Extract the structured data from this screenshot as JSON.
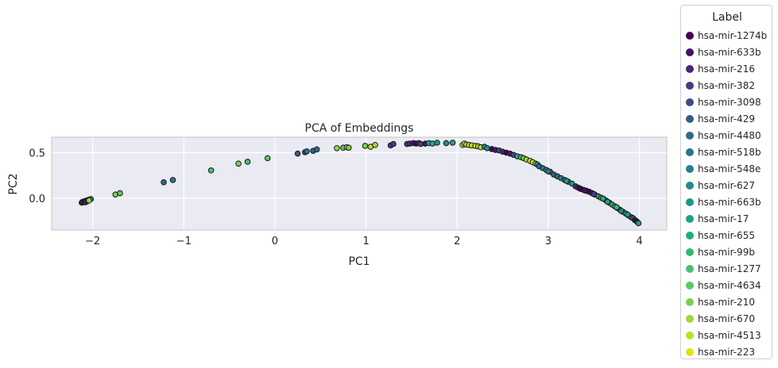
{
  "chart_data": {
    "type": "scatter",
    "title": "PCA of Embeddings",
    "xlabel": "PC1",
    "ylabel": "PC2",
    "xlim": [
      -2.45,
      4.3
    ],
    "ylim": [
      -0.35,
      0.67
    ],
    "xticks": [
      -2,
      -1,
      0,
      1,
      2,
      3,
      4
    ],
    "xtick_labels": [
      "−2",
      "−1",
      "0",
      "1",
      "2",
      "3",
      "4"
    ],
    "yticks": [
      0.0,
      0.5
    ],
    "ytick_labels": [
      "0.0",
      "0.5"
    ],
    "grid": true,
    "legend": {
      "title": "Label",
      "placement": "outside-right",
      "entries": [
        {
          "label": "hsa-mir-1274b",
          "color": "#440154"
        },
        {
          "label": "hsa-mir-633b",
          "color": "#471365"
        },
        {
          "label": "hsa-mir-216",
          "color": "#472877"
        },
        {
          "label": "hsa-mir-382",
          "color": "#433d84"
        },
        {
          "label": "hsa-mir-3098",
          "color": "#3e4b8a"
        },
        {
          "label": "hsa-mir-429",
          "color": "#375a8c"
        },
        {
          "label": "hsa-mir-4480",
          "color": "#30688e"
        },
        {
          "label": "hsa-mir-518b",
          "color": "#2c738e"
        },
        {
          "label": "hsa-mir-548e",
          "color": "#277f8e"
        },
        {
          "label": "hsa-mir-627",
          "color": "#228b8d"
        },
        {
          "label": "hsa-mir-663b",
          "color": "#1f968b"
        },
        {
          "label": "hsa-mir-17",
          "color": "#1fa188"
        },
        {
          "label": "hsa-mir-655",
          "color": "#24aa83"
        },
        {
          "label": "hsa-mir-99b",
          "color": "#35b779"
        },
        {
          "label": "hsa-mir-1277",
          "color": "#4ac16d"
        },
        {
          "label": "hsa-mir-4634",
          "color": "#5cc863"
        },
        {
          "label": "hsa-mir-210",
          "color": "#7ad151"
        },
        {
          "label": "hsa-mir-670",
          "color": "#9bd93c"
        },
        {
          "label": "hsa-mir-4513",
          "color": "#bddf26"
        },
        {
          "label": "hsa-mir-223",
          "color": "#dde318"
        }
      ]
    },
    "points": [
      [
        -2.12,
        -0.05,
        3
      ],
      [
        -2.11,
        -0.04,
        5
      ],
      [
        -2.1,
        -0.04,
        9
      ],
      [
        -2.09,
        -0.035,
        6
      ],
      [
        -2.08,
        -0.03,
        12
      ],
      [
        -2.07,
        -0.03,
        16
      ],
      [
        -2.06,
        -0.025,
        2
      ],
      [
        -2.05,
        -0.02,
        18
      ],
      [
        -2.04,
        -0.02,
        10
      ],
      [
        -2.03,
        -0.015,
        14
      ],
      [
        -2.02,
        -0.01,
        7
      ],
      [
        -2.06,
        -0.035,
        15
      ],
      [
        -2.08,
        -0.045,
        1
      ],
      [
        -2.04,
        -0.025,
        17
      ],
      [
        -1.75,
        0.04,
        16
      ],
      [
        -1.7,
        0.055,
        15
      ],
      [
        -1.22,
        0.175,
        6
      ],
      [
        -1.12,
        0.2,
        7
      ],
      [
        -0.7,
        0.305,
        14
      ],
      [
        -0.4,
        0.38,
        16
      ],
      [
        -0.3,
        0.4,
        14
      ],
      [
        -0.08,
        0.44,
        15
      ],
      [
        0.25,
        0.49,
        5
      ],
      [
        0.33,
        0.505,
        4
      ],
      [
        0.35,
        0.515,
        7
      ],
      [
        0.42,
        0.52,
        5
      ],
      [
        0.46,
        0.535,
        6
      ],
      [
        0.68,
        0.55,
        17
      ],
      [
        0.75,
        0.555,
        15
      ],
      [
        0.79,
        0.56,
        18
      ],
      [
        0.81,
        0.555,
        16
      ],
      [
        0.99,
        0.575,
        16
      ],
      [
        1.05,
        0.565,
        18
      ],
      [
        1.1,
        0.585,
        17
      ],
      [
        1.27,
        0.58,
        3
      ],
      [
        1.3,
        0.595,
        3
      ],
      [
        1.45,
        0.595,
        3
      ],
      [
        1.48,
        0.6,
        2
      ],
      [
        1.52,
        0.605,
        1
      ],
      [
        1.55,
        0.6,
        0
      ],
      [
        1.58,
        0.605,
        2
      ],
      [
        1.6,
        0.595,
        3
      ],
      [
        1.65,
        0.6,
        1
      ],
      [
        1.69,
        0.605,
        11
      ],
      [
        1.73,
        0.6,
        12
      ],
      [
        1.78,
        0.61,
        10
      ],
      [
        1.88,
        0.605,
        9
      ],
      [
        1.95,
        0.61,
        11
      ],
      [
        2.06,
        0.585,
        18
      ],
      [
        2.08,
        0.6,
        19
      ],
      [
        2.1,
        0.59,
        18
      ],
      [
        2.13,
        0.585,
        19
      ],
      [
        2.16,
        0.58,
        18
      ],
      [
        2.2,
        0.575,
        19
      ],
      [
        2.23,
        0.57,
        17
      ],
      [
        2.26,
        0.56,
        18
      ],
      [
        2.3,
        0.565,
        9
      ],
      [
        2.33,
        0.55,
        10
      ],
      [
        2.38,
        0.54,
        0
      ],
      [
        2.42,
        0.53,
        1
      ],
      [
        2.46,
        0.525,
        3
      ],
      [
        2.5,
        0.51,
        2
      ],
      [
        2.54,
        0.5,
        0
      ],
      [
        2.58,
        0.49,
        1
      ],
      [
        2.62,
        0.475,
        4
      ],
      [
        2.66,
        0.46,
        12
      ],
      [
        2.7,
        0.45,
        13
      ],
      [
        2.73,
        0.44,
        16
      ],
      [
        2.76,
        0.425,
        17
      ],
      [
        2.8,
        0.41,
        18
      ],
      [
        2.83,
        0.395,
        19
      ],
      [
        2.86,
        0.38,
        16
      ],
      [
        2.88,
        0.37,
        10
      ],
      [
        2.9,
        0.35,
        6
      ],
      [
        2.94,
        0.33,
        7
      ],
      [
        2.98,
        0.31,
        8
      ],
      [
        3.02,
        0.29,
        9
      ],
      [
        3.06,
        0.26,
        5
      ],
      [
        3.1,
        0.24,
        6
      ],
      [
        3.14,
        0.22,
        8
      ],
      [
        3.18,
        0.2,
        7
      ],
      [
        3.22,
        0.18,
        9
      ],
      [
        3.26,
        0.16,
        10
      ],
      [
        3.3,
        0.13,
        2
      ],
      [
        3.33,
        0.115,
        1
      ],
      [
        3.36,
        0.1,
        0
      ],
      [
        3.39,
        0.09,
        3
      ],
      [
        3.42,
        0.08,
        2
      ],
      [
        3.45,
        0.07,
        0
      ],
      [
        3.48,
        0.055,
        1
      ],
      [
        3.51,
        0.04,
        4
      ],
      [
        3.55,
        0.02,
        11
      ],
      [
        3.58,
        0.005,
        12
      ],
      [
        3.61,
        -0.01,
        10
      ],
      [
        3.64,
        -0.03,
        9
      ],
      [
        3.67,
        -0.05,
        11
      ],
      [
        3.7,
        -0.07,
        12
      ],
      [
        3.73,
        -0.09,
        13
      ],
      [
        3.76,
        -0.11,
        8
      ],
      [
        3.79,
        -0.13,
        9
      ],
      [
        3.82,
        -0.15,
        10
      ],
      [
        3.85,
        -0.17,
        11
      ],
      [
        3.88,
        -0.19,
        7
      ],
      [
        3.91,
        -0.21,
        6
      ],
      [
        3.93,
        -0.22,
        5
      ],
      [
        3.95,
        -0.24,
        1
      ],
      [
        3.97,
        -0.255,
        0
      ],
      [
        3.98,
        -0.265,
        2
      ],
      [
        3.99,
        -0.275,
        11
      ],
      [
        3.0,
        0.295,
        8
      ],
      [
        3.2,
        0.19,
        10
      ],
      [
        3.4,
        0.085,
        1
      ],
      [
        3.6,
        -0.005,
        12
      ],
      [
        3.8,
        -0.14,
        9
      ],
      [
        3.5,
        0.045,
        3
      ],
      [
        3.35,
        0.105,
        0
      ],
      [
        3.65,
        -0.04,
        11
      ],
      [
        3.87,
        -0.18,
        10
      ],
      [
        3.75,
        -0.1,
        13
      ]
    ]
  }
}
